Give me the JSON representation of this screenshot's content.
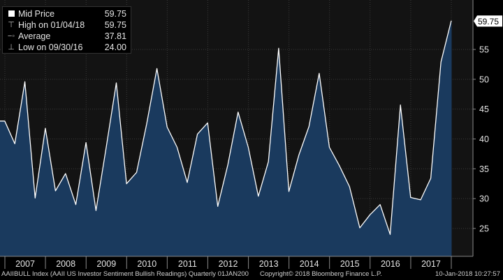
{
  "legend": {
    "mid_label": "Mid Price",
    "mid_value": "59.75",
    "high_label": "High on 01/04/18",
    "high_value": "59.75",
    "avg_label": "Average",
    "avg_value": "37.81",
    "low_label": "Low on 09/30/16",
    "low_value": "24.00"
  },
  "last_price_tag": "59.75",
  "footer": {
    "left": "AAIIBULL Index (AAII US Investor Sentiment Bullish Readings)  Quarterly 01JAN200",
    "middle": "Copyright© 2018 Bloomberg Finance L.P.",
    "right": "10-Jan-2018 10:27:57"
  },
  "colors": {
    "background": "#000000",
    "area_fill": "#1a3a5e",
    "line": "#ffffff",
    "grid": "#3a3a3a",
    "axis_text": "#e6e6e6"
  },
  "chart_data": {
    "type": "area",
    "title": "AAIIBULL Index (AAII US Investor Sentiment Bullish Readings)",
    "frequency": "Quarterly",
    "ylim": [
      21,
      62
    ],
    "y_ticks": [
      25,
      30,
      35,
      40,
      45,
      50,
      55
    ],
    "x_ticks": [
      "2007",
      "2008",
      "2009",
      "2010",
      "2011",
      "2012",
      "2013",
      "2014",
      "2015",
      "2016",
      "2017"
    ],
    "grid": true,
    "y_axis_side": "right",
    "legend_position": "top-left",
    "series": [
      {
        "name": "Mid Price",
        "x": [
          "2006-12-31",
          "2007-03-31",
          "2007-06-30",
          "2007-09-30",
          "2007-12-31",
          "2008-03-31",
          "2008-06-30",
          "2008-09-30",
          "2008-12-31",
          "2009-03-31",
          "2009-06-30",
          "2009-09-30",
          "2009-12-31",
          "2010-03-31",
          "2010-06-30",
          "2010-09-30",
          "2010-12-31",
          "2011-03-31",
          "2011-06-30",
          "2011-09-30",
          "2011-12-31",
          "2012-03-31",
          "2012-06-30",
          "2012-09-30",
          "2012-12-31",
          "2013-03-31",
          "2013-06-30",
          "2013-09-30",
          "2013-12-31",
          "2014-03-31",
          "2014-06-30",
          "2014-09-30",
          "2014-12-31",
          "2015-03-31",
          "2015-06-30",
          "2015-09-30",
          "2015-12-31",
          "2016-03-31",
          "2016-06-30",
          "2016-09-30",
          "2016-12-31",
          "2017-03-31",
          "2017-06-30",
          "2017-09-30",
          "2017-12-31",
          "2018-01-04"
        ],
        "values": [
          43.0,
          39.2,
          49.6,
          30.1,
          41.8,
          31.3,
          34.2,
          29.0,
          39.4,
          28.0,
          38.5,
          49.4,
          32.5,
          34.4,
          42.5,
          51.8,
          42.0,
          38.6,
          32.7,
          40.8,
          42.7,
          28.7,
          35.7,
          44.5,
          38.6,
          30.4,
          36.2,
          55.2,
          31.2,
          37.3,
          42.1,
          51.0,
          38.6,
          35.5,
          32.0,
          25.1,
          27.3,
          29.0,
          24.0,
          45.7,
          30.2,
          29.8,
          33.4,
          52.9,
          59.75,
          59.75
        ]
      }
    ]
  }
}
